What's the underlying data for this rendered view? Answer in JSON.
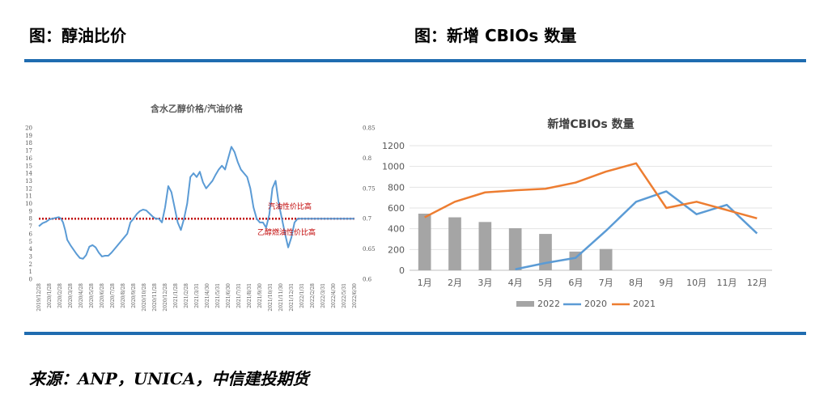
{
  "header": {
    "left_title": "图：醇油比价",
    "right_title": "图：新增 CBIOs 数量"
  },
  "footer": {
    "source": "来源：ANP，UNICA，中信建投期货"
  },
  "colors": {
    "rule": "#1f6cb0",
    "blue": "#5b9bd5",
    "orange": "#ed7d31",
    "gray": "#a5a5a5",
    "red": "#c00000"
  },
  "chart_data": [
    {
      "type": "line",
      "title": "含水乙醇价格/汽油价格",
      "ylim_left": [
        0,
        20
      ],
      "yticks_left": [
        "0",
        "1",
        "2",
        "3",
        "4",
        "5",
        "6",
        "7",
        "8",
        "9",
        "10",
        "11",
        "12",
        "13",
        "14",
        "15",
        "16",
        "17",
        "18",
        "19",
        "20"
      ],
      "ylim_right": [
        0.6,
        0.85
      ],
      "yticks_right": [
        "0.6",
        "0.65",
        "0.7",
        "0.75",
        "0.8",
        "0.85"
      ],
      "x_labels": [
        "2019/12/28",
        "2020/1/28",
        "2020/2/28",
        "2020/3/28",
        "2020/4/28",
        "2020/5/28",
        "2020/6/28",
        "2020/7/28",
        "2020/8/28",
        "2020/9/28",
        "2020/10/28",
        "2020/11/28",
        "2020/12/28",
        "2021/1/28",
        "2021/2/28",
        "2021/3/31",
        "2021/4/30",
        "2021/5/31",
        "2021/6/30",
        "2021/7/31",
        "2021/8/31",
        "2021/9/30",
        "2021/10/31",
        "2021/11/30",
        "2021/12/31",
        "2022/1/31",
        "2022/2/28",
        "2022/3/31",
        "2022/4/30",
        "2022/5/31",
        "2022/6/30"
      ],
      "series": [
        {
          "name": "含水乙醇价格/汽油价格",
          "x": [
            0,
            0.35,
            0.7,
            1,
            1.3,
            1.6,
            1.9,
            2.1,
            2.3,
            2.5,
            2.7,
            3,
            3.3,
            3.6,
            3.9,
            4.2,
            4.5,
            4.8,
            5.1,
            5.4,
            5.7,
            6,
            6.3,
            6.6,
            6.9,
            7.2,
            7.5,
            7.8,
            8.1,
            8.4,
            8.7,
            9,
            9.3,
            9.6,
            9.9,
            10.2,
            10.5,
            10.8,
            11.1,
            11.4,
            11.7,
            12,
            12.3,
            12.6,
            12.9,
            13.2,
            13.5,
            13.8,
            14.1,
            14.4,
            14.7,
            15,
            15.3,
            15.6,
            15.9,
            16.2,
            16.5,
            16.8,
            17.1,
            17.4,
            17.7,
            18,
            18.3,
            18.6,
            18.9,
            19.2,
            19.5,
            19.8,
            20.1,
            20.4,
            20.7,
            21,
            21.3,
            21.6,
            21.9,
            22.2,
            22.5,
            22.8,
            23.1,
            23.4,
            23.7,
            24,
            24.3,
            24.6,
            24.9,
            25.2,
            25.5,
            25.8,
            26.1,
            26.4,
            26.7,
            27,
            27.3,
            27.6,
            27.9,
            28.2,
            28.5,
            28.8,
            29.1,
            29.4,
            29.7,
            30
          ],
          "values": [
            7.0,
            7.4,
            7.6,
            7.9,
            8.0,
            8.1,
            8.2,
            8.0,
            7.5,
            6.5,
            5.2,
            4.5,
            3.9,
            3.3,
            2.8,
            2.7,
            3.2,
            4.3,
            4.5,
            4.2,
            3.5,
            3.0,
            3.1,
            3.1,
            3.5,
            4.0,
            4.5,
            5.0,
            5.5,
            6.0,
            7.5,
            8.0,
            8.6,
            9.0,
            9.2,
            9.1,
            8.7,
            8.3,
            8.0,
            8.0,
            7.5,
            9.5,
            12.3,
            11.5,
            9.5,
            7.5,
            6.5,
            8.0,
            10.0,
            13.5,
            14.0,
            13.5,
            14.2,
            12.8,
            12.0,
            12.5,
            13.0,
            13.8,
            14.5,
            15.0,
            14.5,
            16.0,
            17.5,
            16.8,
            15.5,
            14.5,
            14.0,
            13.5,
            12.0,
            9.5,
            8.0,
            7.5,
            7.5,
            6.8,
            8.5,
            12.0,
            13.0,
            10.0,
            8.0,
            6.0,
            4.2,
            5.5,
            7.5,
            8.0,
            8.0,
            8.0,
            8.0,
            8.0,
            8.0,
            8.0,
            8.0,
            8.0,
            8.0,
            8.0,
            8.0,
            8.0,
            8.0,
            8.0,
            8.0,
            8.0,
            8.0,
            8.0
          ]
        }
      ],
      "reference_line": {
        "value": 8.0,
        "style": "dotted"
      },
      "annotations": [
        "汽油性价比高",
        "乙醇燃油性价比高"
      ]
    },
    {
      "type": "bar+line",
      "title": "新增CBIOs 数量",
      "categories": [
        "1月",
        "2月",
        "3月",
        "4月",
        "5月",
        "6月",
        "7月",
        "8月",
        "9月",
        "10月",
        "11月",
        "12月"
      ],
      "ylim": [
        0,
        1200
      ],
      "yticks": [
        "0",
        "200",
        "400",
        "600",
        "800",
        "1000",
        "1200"
      ],
      "series": [
        {
          "name": "2022",
          "kind": "bar",
          "values": [
            545,
            510,
            465,
            405,
            350,
            180,
            205,
            null,
            null,
            null,
            null,
            null
          ]
        },
        {
          "name": "2020",
          "kind": "line",
          "values": [
            null,
            null,
            null,
            10,
            70,
            120,
            380,
            660,
            760,
            540,
            630,
            355
          ]
        },
        {
          "name": "2021",
          "kind": "line",
          "values": [
            510,
            660,
            750,
            770,
            785,
            845,
            950,
            1030,
            600,
            660,
            580,
            500
          ]
        }
      ],
      "legend": [
        "2022",
        "2020",
        "2021"
      ],
      "legend_position": "bottom"
    }
  ]
}
